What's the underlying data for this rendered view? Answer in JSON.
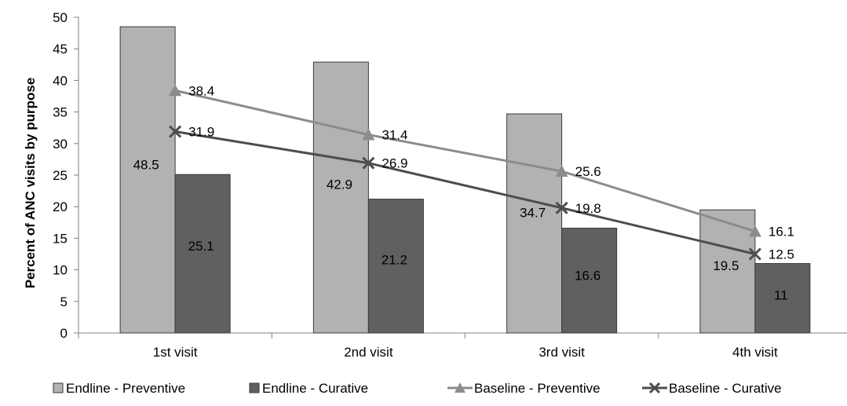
{
  "chart_data": {
    "type": "bar",
    "categories": [
      "1st visit",
      "2nd visit",
      "3rd visit",
      "4th visit"
    ],
    "series": [
      {
        "name": "Endline - Preventive",
        "kind": "bar",
        "values": [
          48.5,
          42.9,
          34.7,
          19.5
        ],
        "color": "#b2b2b2",
        "marker": ""
      },
      {
        "name": "Endline - Curative",
        "kind": "bar",
        "values": [
          25.1,
          21.2,
          16.6,
          11
        ],
        "color": "#606060",
        "marker": ""
      },
      {
        "name": "Baseline - Preventive",
        "kind": "line",
        "values": [
          38.4,
          31.4,
          25.6,
          16.1
        ],
        "color": "#8c8c8c",
        "marker": "triangle"
      },
      {
        "name": "Baseline - Curative",
        "kind": "line",
        "values": [
          31.9,
          26.9,
          19.8,
          12.5
        ],
        "color": "#4d4d4d",
        "marker": "x"
      }
    ],
    "data_labels": {
      "Endline - Preventive": [
        "48.5",
        "42.9",
        "34.7",
        "19.5"
      ],
      "Endline - Curative": [
        "25.1",
        "21.2",
        "16.6",
        "11"
      ],
      "Baseline - Preventive": [
        "38.4",
        "31.4",
        "25.6",
        "16.1"
      ],
      "Baseline - Curative": [
        "31.9",
        "26.9",
        "19.8",
        "12.5"
      ]
    },
    "title": "",
    "xlabel": "",
    "ylabel": "Percent of ANC visits by purpose",
    "ylim": [
      0,
      50
    ],
    "yticks": [
      0,
      5,
      10,
      15,
      20,
      25,
      30,
      35,
      40,
      45,
      50
    ],
    "grid": false,
    "legend_position": "bottom"
  }
}
